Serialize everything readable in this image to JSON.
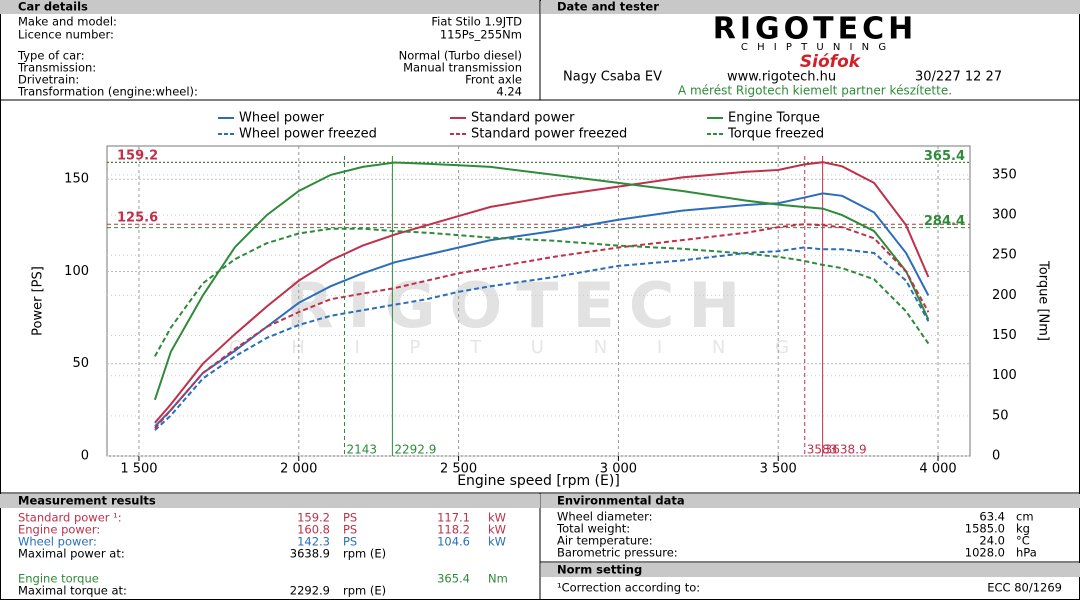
{
  "car_details": {
    "title": "Car details",
    "rows": [
      [
        "Make and model:",
        "Fiat Stilo 1.9JTD"
      ],
      [
        "Licence number:",
        "115Ps_255Nm"
      ],
      [
        "Type of car:",
        "Normal (Turbo diesel)"
      ],
      [
        "Transmission:",
        "Manual transmission"
      ],
      [
        "Drivetrain:",
        "Front axle"
      ],
      [
        "Transformation (engine:wheel):",
        "4.24"
      ]
    ]
  },
  "tester": {
    "title": "Date and tester",
    "logo": "RIGOTECH",
    "logo_sub": "C H I P T U N I N G",
    "city": "Siófok",
    "name": "Nagy Csaba EV",
    "web": "www.rigotech.hu",
    "phone": "30/227 12 27",
    "note": "A mérést Rigotech kiemelt partner készítette."
  },
  "chart_data": {
    "type": "line",
    "xlabel": "Engine speed [rpm (E)]",
    "ylabel": "Power [PS]",
    "y2label": "Torque [Nm]",
    "watermark": "RIGOTECH",
    "watermark_sub": "C H I P T U N I N G",
    "x": [
      1550,
      1600,
      1700,
      1800,
      1900,
      2000,
      2100,
      2200,
      2300,
      2400,
      2500,
      2600,
      2800,
      3000,
      3200,
      3400,
      3500,
      3580,
      3639,
      3700,
      3800,
      3900,
      3970
    ],
    "series": [
      {
        "name": "Wheel power",
        "color": "#2a6ebb",
        "dash": false,
        "axis": "y",
        "values": [
          16,
          25,
          45,
          57,
          70,
          83,
          92,
          99,
          105,
          109,
          113,
          117,
          122,
          128,
          133,
          136,
          137,
          140,
          142.3,
          141,
          132,
          110,
          87
        ]
      },
      {
        "name": "Standard power",
        "color": "#c0304a",
        "dash": false,
        "axis": "y",
        "values": [
          18,
          28,
          50,
          66,
          81,
          95,
          106,
          114,
          120,
          125,
          130,
          135,
          141,
          146,
          151,
          154,
          155,
          158,
          159.2,
          157,
          148,
          125,
          97
        ]
      },
      {
        "name": "Engine Torque",
        "color": "#2e8b3a",
        "dash": false,
        "axis": "y2",
        "values": [
          70,
          130,
          200,
          260,
          300,
          330,
          350,
          360,
          365.4,
          364,
          362,
          360,
          350,
          340,
          330,
          318,
          313,
          310,
          308,
          300,
          280,
          230,
          170
        ]
      },
      {
        "name": "Wheel power freezed",
        "color": "#2a6ebb",
        "dash": true,
        "axis": "y",
        "values": [
          14,
          22,
          42,
          54,
          64,
          71,
          76,
          79,
          82,
          85,
          89,
          92,
          97,
          103,
          106,
          110,
          111,
          113,
          112,
          112,
          110,
          95,
          73
        ]
      },
      {
        "name": "Standard power freezed",
        "color": "#c0304a",
        "dash": true,
        "axis": "y",
        "values": [
          15,
          25,
          45,
          58,
          70,
          78,
          85,
          88,
          91,
          95,
          99,
          102,
          108,
          113,
          117,
          121,
          124,
          125.6,
          125,
          124,
          118,
          100,
          78
        ]
      },
      {
        "name": "Torque freezed",
        "color": "#2e8b3a",
        "dash": true,
        "axis": "y2",
        "values": [
          124,
          160,
          215,
          245,
          265,
          277,
          283,
          283,
          280,
          278,
          275,
          272,
          268,
          262,
          258,
          252,
          248,
          243,
          238,
          234,
          220,
          180,
          140
        ]
      }
    ],
    "xlim": [
      1400,
      4100
    ],
    "ylim": [
      0,
      168
    ],
    "y2lim": [
      0,
      386
    ],
    "xticks": [
      {
        "value": 1500,
        "label": "1 500"
      },
      {
        "value": 2000,
        "label": "2 000"
      },
      {
        "value": 2500,
        "label": "2 500"
      },
      {
        "value": 3000,
        "label": "3 000"
      },
      {
        "value": 3500,
        "label": "3 500"
      },
      {
        "value": 4000,
        "label": "4 000"
      }
    ],
    "yticks": [
      0,
      50,
      100,
      150
    ],
    "y2ticks": [
      0,
      50,
      100,
      150,
      200,
      250,
      300,
      350
    ],
    "grid": true,
    "hmarkers": [
      {
        "value": 159.2,
        "axis": "y",
        "color": "#c0304a",
        "dash": false
      },
      {
        "value": 125.6,
        "axis": "y",
        "color": "#c0304a",
        "dash": true
      },
      {
        "value": 365.4,
        "axis": "y2",
        "color": "#2e8b3a",
        "dash": false
      },
      {
        "value": 284.4,
        "axis": "y2",
        "color": "#2e8b3a",
        "dash": true
      }
    ],
    "vmarkers": [
      {
        "value": 2143,
        "color": "#2e8b3a",
        "dash": true
      },
      {
        "value": 2292.9,
        "color": "#2e8b3a",
        "dash": false
      },
      {
        "value": 3583,
        "color": "#c0304a",
        "dash": true
      },
      {
        "value": 3638.9,
        "color": "#c0304a",
        "dash": false
      }
    ]
  },
  "measurement": {
    "title": "Measurement results",
    "rows": [
      {
        "label": "Standard power ¹:",
        "v1": "159.2",
        "u1": "PS",
        "v2": "117.1",
        "u2": "kW",
        "color": "#c0304a"
      },
      {
        "label": "Engine power:",
        "v1": "160.8",
        "u1": "PS",
        "v2": "118.2",
        "u2": "kW",
        "color": "#c0304a"
      },
      {
        "label": "Wheel power:",
        "v1": "142.3",
        "u1": "PS",
        "v2": "104.6",
        "u2": "kW",
        "color": "#2a6ebb"
      },
      {
        "label": "Maximal power at:",
        "v1": "3638.9",
        "u1": "rpm (E)",
        "color": "#000000"
      },
      {
        "label": "Engine torque",
        "v2": "365.4",
        "u2": "Nm",
        "color": "#2e8b3a"
      },
      {
        "label": "Maximal torque at:",
        "v1": "2292.9",
        "u1": "rpm (E)",
        "color": "#000000"
      }
    ]
  },
  "environment": {
    "title": "Environmental data",
    "rows": [
      {
        "label": "Wheel diameter:",
        "v": "63.4",
        "u": "cm"
      },
      {
        "label": "Total weight:",
        "v": "1585.0",
        "u": "kg"
      },
      {
        "label": "Air temperature:",
        "v": "24.0",
        "u": "°C"
      },
      {
        "label": "Barometric pressure:",
        "v": "1028.0",
        "u": "hPa"
      }
    ]
  },
  "norm": {
    "title": "Norm setting",
    "label": "¹Correction according to:",
    "value": "ECC 80/1269"
  }
}
